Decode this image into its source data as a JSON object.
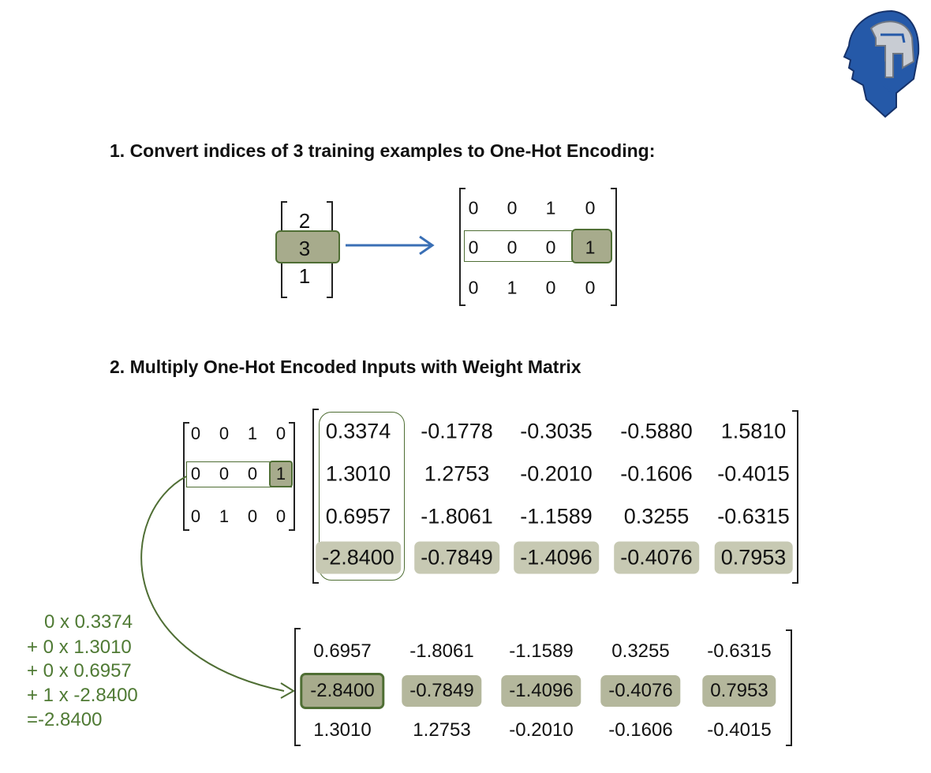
{
  "step1": {
    "title": "1. Convert indices of 3 training  examples to One-Hot Encoding:",
    "indices": [
      "2",
      "3",
      "1"
    ],
    "onehot": [
      [
        "0",
        "0",
        "1",
        "0"
      ],
      [
        "0",
        "0",
        "0",
        "1"
      ],
      [
        "0",
        "1",
        "0",
        "0"
      ]
    ]
  },
  "step2": {
    "title": "2. Multiply One-Hot Encoded Inputs with Weight Matrix",
    "onehot": [
      [
        "0",
        "0",
        "1",
        "0"
      ],
      [
        "0",
        "0",
        "0",
        "1"
      ],
      [
        "0",
        "1",
        "0",
        "0"
      ]
    ],
    "weights": [
      [
        "0.3374",
        "-0.1778",
        "-0.3035",
        "-0.5880",
        "1.5810"
      ],
      [
        "1.3010",
        "1.2753",
        "-0.2010",
        "-0.1606",
        "-0.4015"
      ],
      [
        "0.6957",
        "-1.8061",
        "-1.1589",
        "0.3255",
        "-0.6315"
      ],
      [
        "-2.8400",
        "-0.7849",
        "-1.4096",
        "-0.4076",
        "0.7953"
      ]
    ],
    "calculation": [
      "0 x 0.3374",
      "+ 0 x 1.3010",
      "+ 0 x 0.6957",
      "+ 1 x -2.8400",
      "=-2.8400"
    ],
    "result": [
      [
        "0.6957",
        "-1.8061",
        "-1.1589",
        "0.3255",
        "-0.6315"
      ],
      [
        "-2.8400",
        "-0.7849",
        "-1.4096",
        "-0.4076",
        "0.7953"
      ],
      [
        "1.3010",
        "1.2753",
        "-0.2010",
        "-0.1606",
        "-0.4015"
      ]
    ]
  },
  "logo": {
    "icon": "robot-head-logo-icon",
    "colors": [
      "#1f4e9c",
      "#c8ccd3"
    ]
  },
  "colors": {
    "accent_green": "#4f6e34",
    "highlight": "#c7c9b3",
    "arrow_blue": "#3a6fb5"
  }
}
